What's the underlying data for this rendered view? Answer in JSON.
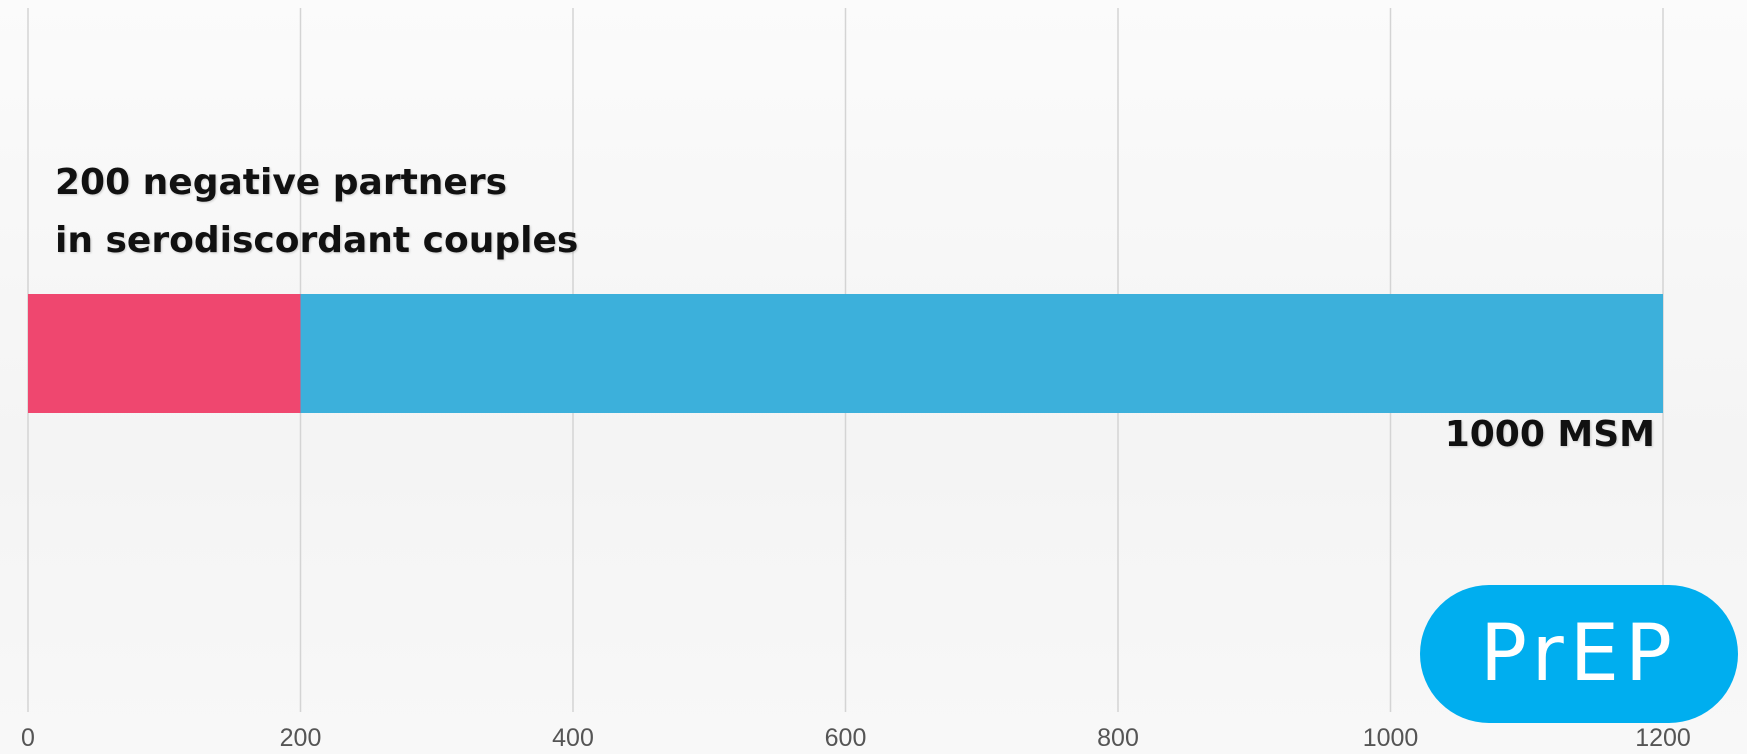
{
  "chart_data": {
    "type": "bar",
    "orientation": "horizontal",
    "stacked": true,
    "xlim": [
      0,
      1200
    ],
    "xticks": [
      0,
      200,
      400,
      600,
      800,
      1000,
      1200
    ],
    "grid": true,
    "segments": [
      {
        "value": 200,
        "color": "#ef476f"
      },
      {
        "value": 1000,
        "color": "#3cb0db"
      }
    ],
    "annotations": {
      "left_line1": "200 negative partners",
      "left_line2": "in serodiscordant couples",
      "right": "1000 MSM"
    }
  },
  "badge": {
    "text": "PrEP",
    "color": "#00aeef"
  },
  "colors": {
    "grid": "#d4d4d4",
    "tick_label": "#555555"
  }
}
